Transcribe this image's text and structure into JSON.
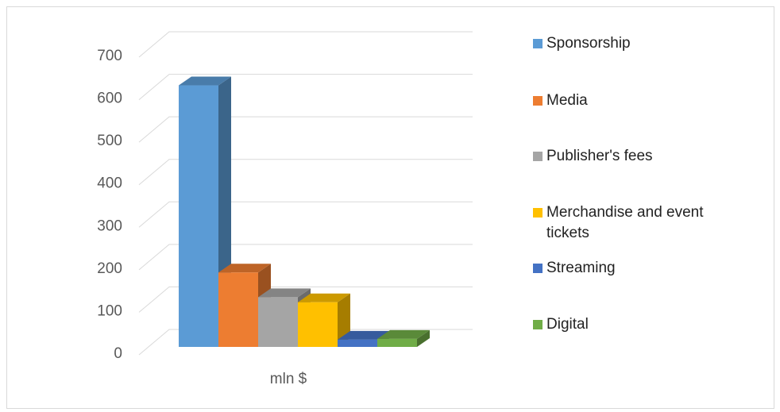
{
  "chart_data": {
    "type": "bar3d",
    "categories": [
      "mln $"
    ],
    "series": [
      {
        "name": "Sponsorship",
        "color": "#5b9bd5",
        "values": [
          615
        ]
      },
      {
        "name": "Media",
        "color": "#ed7d31",
        "values": [
          175
        ]
      },
      {
        "name": "Publisher's fees",
        "color": "#a5a5a5",
        "values": [
          117
        ]
      },
      {
        "name": "Merchandise and event tickets",
        "color": "#ffc000",
        "values": [
          105
        ]
      },
      {
        "name": "Streaming",
        "color": "#4472c4",
        "values": [
          17
        ]
      },
      {
        "name": "Digital",
        "color": "#70ad47",
        "values": [
          19
        ]
      }
    ],
    "ylim": [
      0,
      700
    ],
    "yticks": [
      0,
      100,
      200,
      300,
      400,
      500,
      600,
      700
    ],
    "grid": true,
    "legend": "right"
  }
}
